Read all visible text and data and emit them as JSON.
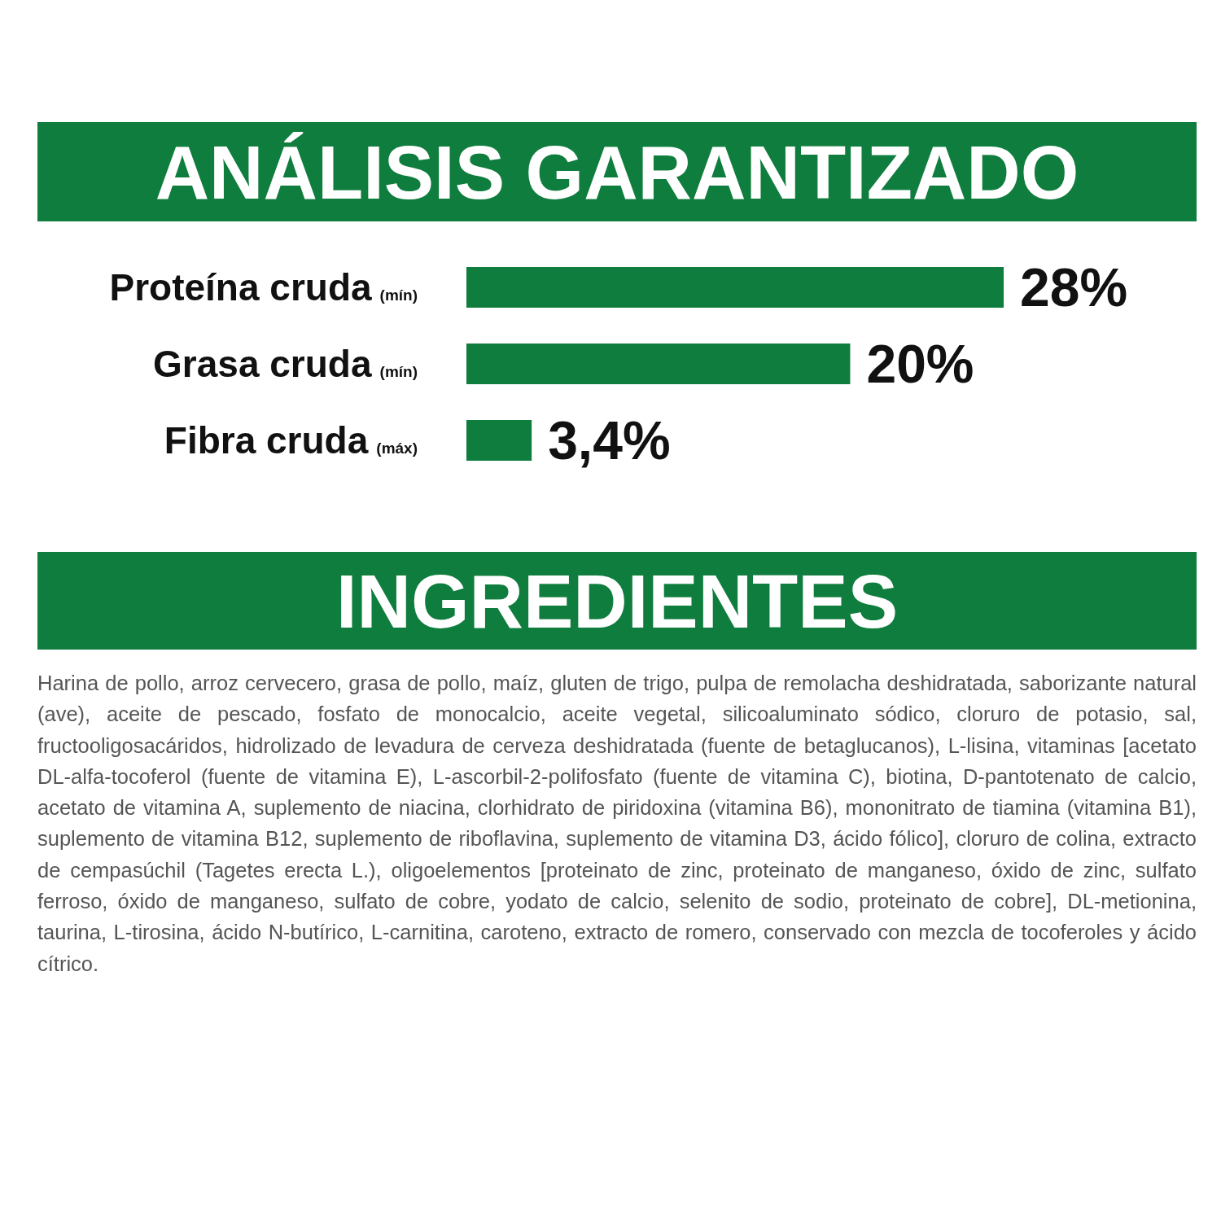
{
  "chart_data": {
    "type": "bar",
    "orientation": "horizontal",
    "title": "ANÁLISIS GARANTIZADO",
    "categories": [
      "Proteína cruda (mín)",
      "Grasa cruda (mín)",
      "Fibra cruda (máx)"
    ],
    "values": [
      28,
      20,
      3.4
    ],
    "value_labels": [
      "28%",
      "20%",
      "3,4%"
    ],
    "color": "#0f7d3e",
    "xlim": [
      0,
      28
    ],
    "annotations": [
      "INGREDIENTES",
      "Harina de pollo, arroz cervecero, grasa de pollo, maíz, gluten de trigo, pulpa de remolacha deshidratada, saborizante natural (ave), aceite de pescado, fosfato de monocalcio, aceite vegetal, silicoaluminato sódico, cloruro de potasio, sal, fructooligosacáridos, hidrolizado de levadura de cerveza deshidratada (fuente de betaglucanos), L-lisina, vitaminas [acetato DL-alfa-tocoferol (fuente de vitamina E), L-ascorbil-2-polifosfato (fuente de vitamina C), biotina, D-pantotenato de calcio, acetato de vitamina A, suplemento de niacina, clorhidrato de piridoxina (vitamina B6), mononitrato de tiamina (vitamina B1), suplemento de vitamina B12, suplemento de riboflavina, suplemento de vitamina D3, ácido fólico], cloruro de colina, extracto de cempasúchil (Tagetes erecta L.), oligoelementos [proteinato de zinc, proteinato de manganeso, óxido de zinc, sulfato ferroso, óxido de manganeso, sulfato de cobre, yodato de calcio, selenito de sodio, proteinato de cobre], DL-metionina, taurina, L-tirosina, ácido N-butírico, L-carnitina, caroteno, extracto de romero, conservado con mezcla de tocoferoles y ácido cítrico."
    ]
  }
}
